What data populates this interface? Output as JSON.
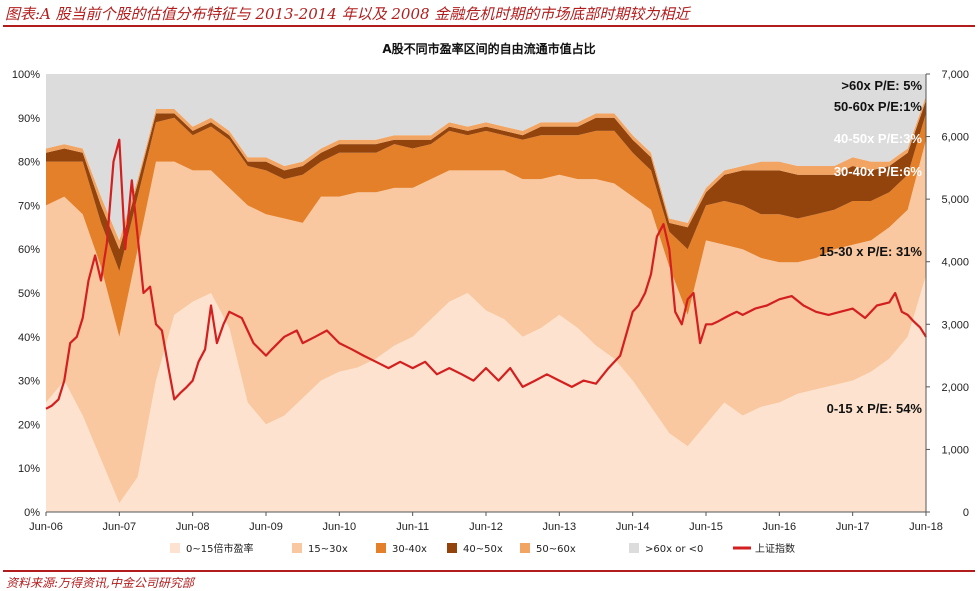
{
  "header": {
    "title": "图表:A 股当前个股的估值分布特征与 2013-2014 年以及 2008 金融危机时期的市场底部时期较为相近",
    "source": "资料来源:万得资讯,中金公司研究部"
  },
  "chart_data": {
    "type": "area",
    "title": "A股不同市盈率区间的自由流通市值占比",
    "x": [
      2006.5,
      2006.75,
      2007.0,
      2007.25,
      2007.5,
      2007.75,
      2008.0,
      2008.25,
      2008.5,
      2008.75,
      2009.0,
      2009.25,
      2009.5,
      2009.75,
      2010.0,
      2010.25,
      2010.5,
      2010.75,
      2011.0,
      2011.25,
      2011.5,
      2011.75,
      2012.0,
      2012.25,
      2012.5,
      2012.75,
      2013.0,
      2013.25,
      2013.5,
      2013.75,
      2014.0,
      2014.25,
      2014.5,
      2014.75,
      2015.0,
      2015.25,
      2015.5,
      2015.75,
      2016.0,
      2016.25,
      2016.5,
      2016.75,
      2017.0,
      2017.25,
      2017.5,
      2017.75,
      2018.0,
      2018.25,
      2018.5
    ],
    "xticks": [
      {
        "x": 2006.5,
        "label": "Jun-06"
      },
      {
        "x": 2007.5,
        "label": "Jun-07"
      },
      {
        "x": 2008.5,
        "label": "Jun-08"
      },
      {
        "x": 2009.5,
        "label": "Jun-09"
      },
      {
        "x": 2010.5,
        "label": "Jun-10"
      },
      {
        "x": 2011.5,
        "label": "Jun-11"
      },
      {
        "x": 2012.5,
        "label": "Jun-12"
      },
      {
        "x": 2013.5,
        "label": "Jun-13"
      },
      {
        "x": 2014.5,
        "label": "Jun-14"
      },
      {
        "x": 2015.5,
        "label": "Jun-15"
      },
      {
        "x": 2016.5,
        "label": "Jun-16"
      },
      {
        "x": 2017.5,
        "label": "Jun-17"
      },
      {
        "x": 2018.5,
        "label": "Jun-18"
      }
    ],
    "xlim": [
      2006.5,
      2018.5
    ],
    "ylim_left": [
      0,
      100
    ],
    "ylim_right": [
      0,
      7000
    ],
    "yticks_left": [
      "0%",
      "10%",
      "20%",
      "30%",
      "40%",
      "50%",
      "60%",
      "70%",
      "80%",
      "90%",
      "100%"
    ],
    "yticks_right": [
      "0",
      "1,000",
      "2,000",
      "3,000",
      "4,000",
      "5,000",
      "6,000",
      "7,000"
    ],
    "series": [
      {
        "name": "0~15倍市盈率",
        "color": "#fde3cf",
        "values": [
          25,
          30,
          22,
          12,
          2,
          8,
          30,
          45,
          48,
          50,
          42,
          25,
          20,
          22,
          26,
          30,
          32,
          33,
          35,
          38,
          40,
          44,
          48,
          50,
          46,
          44,
          40,
          42,
          45,
          42,
          38,
          35,
          30,
          24,
          18,
          15,
          20,
          25,
          22,
          24,
          25,
          27,
          28,
          29,
          30,
          32,
          35,
          40,
          54
        ]
      },
      {
        "name": "15~30x",
        "color": "#f9c8a0",
        "values": [
          45,
          42,
          46,
          44,
          38,
          52,
          50,
          35,
          30,
          28,
          32,
          45,
          48,
          45,
          40,
          42,
          40,
          40,
          38,
          36,
          34,
          32,
          30,
          28,
          32,
          34,
          36,
          34,
          32,
          34,
          38,
          40,
          42,
          45,
          38,
          30,
          42,
          36,
          38,
          34,
          32,
          30,
          30,
          31,
          31,
          30,
          30,
          29,
          31
        ]
      },
      {
        "name": "30-40x",
        "color": "#e47f2a",
        "values": [
          10,
          8,
          12,
          10,
          15,
          12,
          9,
          10,
          8,
          10,
          11,
          9,
          10,
          9,
          11,
          8,
          10,
          9,
          9,
          10,
          9,
          8,
          9,
          8,
          9,
          8,
          9,
          10,
          9,
          10,
          11,
          12,
          10,
          9,
          8,
          15,
          8,
          10,
          10,
          10,
          11,
          10,
          10,
          9,
          10,
          9,
          8,
          8,
          6
        ]
      },
      {
        "name": "40~50x",
        "color": "#93440c",
        "values": [
          2,
          3,
          2,
          4,
          5,
          3,
          2,
          1,
          1,
          1,
          1,
          1,
          2,
          2,
          2,
          2,
          2,
          2,
          2,
          1,
          2,
          1,
          1,
          1,
          1,
          1,
          1,
          2,
          2,
          2,
          3,
          3,
          3,
          3,
          2,
          5,
          3,
          6,
          8,
          10,
          10,
          10,
          9,
          8,
          8,
          7,
          6,
          5,
          3
        ]
      },
      {
        "name": "50~60x",
        "color": "#f2a463",
        "values": [
          1,
          1,
          1,
          2,
          2,
          1,
          1,
          1,
          1,
          1,
          1,
          1,
          1,
          1,
          1,
          1,
          1,
          1,
          1,
          1,
          1,
          1,
          1,
          1,
          1,
          1,
          1,
          1,
          1,
          1,
          1,
          1,
          1,
          1,
          1,
          1,
          1,
          1,
          1,
          2,
          2,
          2,
          2,
          2,
          2,
          2,
          1,
          1,
          1
        ]
      },
      {
        "name": ">60x or <0",
        "color": "#dcdcdc",
        "values": [
          17,
          16,
          17,
          28,
          38,
          24,
          8,
          8,
          12,
          10,
          13,
          19,
          19,
          21,
          20,
          17,
          15,
          15,
          15,
          14,
          14,
          14,
          11,
          12,
          11,
          12,
          13,
          11,
          11,
          11,
          9,
          9,
          14,
          18,
          33,
          34,
          26,
          22,
          21,
          20,
          20,
          21,
          21,
          21,
          19,
          20,
          20,
          17,
          5
        ]
      }
    ],
    "index_series": {
      "name": "上证指数",
      "color": "#d31f1f",
      "x": [
        2006.5,
        2006.58,
        2006.67,
        2006.75,
        2006.83,
        2006.92,
        2007.0,
        2007.08,
        2007.17,
        2007.25,
        2007.33,
        2007.42,
        2007.5,
        2007.58,
        2007.67,
        2007.75,
        2007.83,
        2007.92,
        2008.0,
        2008.08,
        2008.17,
        2008.25,
        2008.33,
        2008.42,
        2008.5,
        2008.58,
        2008.67,
        2008.75,
        2008.83,
        2008.92,
        2009.0,
        2009.17,
        2009.33,
        2009.5,
        2009.58,
        2009.75,
        2009.92,
        2010.0,
        2010.17,
        2010.33,
        2010.5,
        2010.67,
        2010.83,
        2011.0,
        2011.17,
        2011.33,
        2011.5,
        2011.67,
        2011.83,
        2012.0,
        2012.17,
        2012.33,
        2012.5,
        2012.67,
        2012.83,
        2013.0,
        2013.17,
        2013.33,
        2013.5,
        2013.67,
        2013.83,
        2014.0,
        2014.17,
        2014.33,
        2014.5,
        2014.58,
        2014.67,
        2014.75,
        2014.83,
        2014.92,
        2015.0,
        2015.08,
        2015.17,
        2015.25,
        2015.33,
        2015.42,
        2015.5,
        2015.58,
        2015.67,
        2015.75,
        2015.83,
        2015.92,
        2016.0,
        2016.17,
        2016.33,
        2016.5,
        2016.67,
        2016.83,
        2017.0,
        2017.17,
        2017.33,
        2017.5,
        2017.67,
        2017.83,
        2018.0,
        2018.08,
        2018.17,
        2018.25,
        2018.33,
        2018.42,
        2018.5
      ],
      "values": [
        1650,
        1700,
        1800,
        2100,
        2700,
        2800,
        3100,
        3700,
        4100,
        3700,
        4300,
        5600,
        5950,
        4200,
        5300,
        4400,
        3500,
        3600,
        3000,
        2900,
        2300,
        1800,
        1900,
        2000,
        2100,
        2400,
        2600,
        3300,
        2700,
        3000,
        3200,
        3100,
        2700,
        2500,
        2600,
        2800,
        2900,
        2700,
        2800,
        2900,
        2700,
        2600,
        2500,
        2400,
        2300,
        2400,
        2300,
        2400,
        2200,
        2300,
        2200,
        2100,
        2300,
        2100,
        2300,
        2000,
        2100,
        2200,
        2100,
        2000,
        2100,
        2050,
        2300,
        2500,
        3200,
        3300,
        3500,
        3800,
        4400,
        4600,
        4200,
        3200,
        3000,
        3400,
        3500,
        2700,
        3000,
        3000,
        3050,
        3100,
        3150,
        3200,
        3150,
        3250,
        3300,
        3400,
        3450,
        3300,
        3200,
        3150,
        3200,
        3250,
        3100,
        3300,
        3350,
        3500,
        3200,
        3150,
        3050,
        2950,
        2800
      ]
    },
    "annotations": [
      {
        "text": ">60x P/E: 5%",
        "color": "#111111"
      },
      {
        "text": "50-60x P/E:1%",
        "color": "#111111"
      },
      {
        "text": "40-50x P/E:3%",
        "color": "#ffffff"
      },
      {
        "text": "30-40x P/E:6%",
        "color": "#ffffff"
      },
      {
        "text": "15-30 x P/E: 31%",
        "color": "#111111"
      },
      {
        "text": "0-15 x P/E: 54%",
        "color": "#111111"
      }
    ],
    "legend": {
      "placement": "bottom"
    }
  }
}
